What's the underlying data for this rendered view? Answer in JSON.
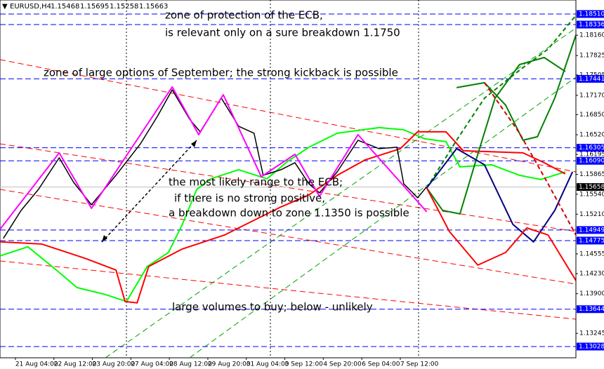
{
  "chart_data": {
    "type": "line",
    "header": {
      "symbol": "EURUSD,H4",
      "ohlc": [
        1.15468,
        1.15695,
        1.15258,
        1.15663
      ]
    },
    "xlim": [
      -3.2,
      116.5
    ],
    "xticks": [
      {
        "value": 0,
        "label": "21 Aug 04:00"
      },
      {
        "value": 8,
        "label": "22 Aug 12:00"
      },
      {
        "value": 16,
        "label": "23 Aug 20:00"
      },
      {
        "value": 24,
        "label": "27 Aug 04:00"
      },
      {
        "value": 32,
        "label": "28 Aug 12:00"
      },
      {
        "value": 40,
        "label": "29 Aug 20:00"
      },
      {
        "value": 48,
        "label": "31 Aug 04:00"
      },
      {
        "value": 56,
        "label": "3 Sep 12:00"
      },
      {
        "value": 64,
        "label": "4 Sep 20:00"
      },
      {
        "value": 72,
        "label": "6 Sep 04:00"
      },
      {
        "value": 80,
        "label": "7 Sep 12:00"
      }
    ],
    "ylim": [
      1.12843,
      1.18741
    ],
    "yticks": [
      {
        "value": 1.1816,
        "label": "1.18160"
      },
      {
        "value": 1.17825,
        "label": "1.17825"
      },
      {
        "value": 1.17505,
        "label": "1.17505"
      },
      {
        "value": 1.1717,
        "label": "1.17170"
      },
      {
        "value": 1.1685,
        "label": "1.16850"
      },
      {
        "value": 1.1652,
        "label": "1.16520"
      },
      {
        "value": 1.16195,
        "label": "1.16195"
      },
      {
        "value": 1.15865,
        "label": "1.15865"
      },
      {
        "value": 1.1554,
        "label": "1.15540"
      },
      {
        "value": 1.1521,
        "label": "1.15210"
      },
      {
        "value": 1.14555,
        "label": "1.14555"
      },
      {
        "value": 1.1423,
        "label": "1.14230"
      },
      {
        "value": 1.139,
        "label": "1.13900"
      },
      {
        "value": 1.13245,
        "label": "1.13245"
      }
    ],
    "levels": [
      {
        "value": 1.1851,
        "label": "1.18510"
      },
      {
        "value": 1.18336,
        "label": "1.18336"
      },
      {
        "value": 1.17441,
        "label": "1.17441"
      },
      {
        "value": 1.16305,
        "label": "1.16305"
      },
      {
        "value": 1.1609,
        "label": "1.16090"
      },
      {
        "value": 1.14949,
        "label": "1.14949"
      },
      {
        "value": 1.14775,
        "label": "1.14775"
      },
      {
        "value": 1.13644,
        "label": "1.13644"
      },
      {
        "value": 1.13028,
        "label": "1.13028"
      }
    ],
    "level_color": "#0000ff",
    "current_price": {
      "value": 1.15658,
      "label": "1.15658"
    },
    "series": [
      {
        "color": "#00ff00",
        "width": 2,
        "dash": false,
        "x": [
          -3.2,
          2.6,
          8.5,
          12.8,
          18.7,
          23.1,
          27.4,
          31.8,
          34.7,
          37.7,
          40.6,
          46.4,
          52.3,
          56.6,
          61.0,
          66.9,
          75.6,
          80.7,
          85.1,
          89.5,
          92.4,
          99.0,
          104.8,
          109.2,
          114.3
        ],
        "values": [
          1.14522,
          1.14672,
          1.1429,
          1.14001,
          1.13886,
          1.1377,
          1.14348,
          1.14579,
          1.15042,
          1.1562,
          1.15793,
          1.15943,
          1.15793,
          1.16082,
          1.16313,
          1.16545,
          1.16637,
          1.16602,
          1.16452,
          1.16406,
          1.1599,
          1.16024,
          1.15851,
          1.15782,
          1.15909
        ]
      },
      {
        "color": "#ff0000",
        "width": 2,
        "dash": false,
        "x": [
          -3.2,
          5.5,
          14.3,
          20.9,
          22.8,
          25.3,
          27.7,
          34.7,
          43.5,
          50.8,
          55.2,
          61.0,
          66.9,
          72.7,
          80.0,
          83.6,
          89.5,
          93.1,
          105.5,
          109.9,
          114.3
        ],
        "values": [
          1.14753,
          1.14718,
          1.14487,
          1.1429,
          1.1377,
          1.13747,
          1.14348,
          1.14637,
          1.14868,
          1.15157,
          1.15331,
          1.15527,
          1.15851,
          1.16105,
          1.1629,
          1.16568,
          1.16568,
          1.16256,
          1.16221,
          1.16059,
          1.15874
        ]
      },
      {
        "color": "#000000",
        "width": 1.5,
        "dash": false,
        "x": [
          -2.5,
          1.2,
          4.8,
          9.1,
          12.1,
          15.8,
          20.9,
          26.0,
          29.6,
          32.6,
          36.2,
          38.4,
          42.8,
          46.4,
          49.6,
          51.5,
          55.2,
          58.1,
          61.0,
          63.2,
          66.9,
          71.2,
          75.6,
          79.3,
          80.7,
          83.6,
          85.5
        ],
        "values": [
          1.14811,
          1.15273,
          1.1562,
          1.1614,
          1.15735,
          1.15365,
          1.15851,
          1.16371,
          1.16834,
          1.17261,
          1.16776,
          1.16568,
          1.17123,
          1.1666,
          1.16545,
          1.15851,
          1.15943,
          1.16059,
          1.15712,
          1.15562,
          1.15909,
          1.16429,
          1.1629,
          1.16313,
          1.15712,
          1.15481,
          1.15663
        ]
      },
      {
        "color": "#ff00ff",
        "width": 2,
        "dash": false,
        "x": [
          -3.2,
          9.1,
          15.8,
          32.6,
          38.1,
          43.2,
          51.1,
          58.1,
          63.2,
          71.2,
          85.5
        ],
        "values": [
          1.14961,
          1.16221,
          1.15308,
          1.17308,
          1.16521,
          1.1718,
          1.15828,
          1.16198,
          1.15504,
          1.16521,
          1.1525
        ]
      },
      {
        "color": "#008000",
        "width": 2,
        "dash": true,
        "x": [
          85.5,
          91.7,
          97.5,
          104.8,
          110.7,
          116.5
        ],
        "values": [
          1.15643,
          1.16429,
          1.17123,
          1.17585,
          1.17932,
          1.18487
        ]
      },
      {
        "color": "#008000",
        "width": 2,
        "dash": false,
        "x": [
          85.5,
          88.8,
          92.4,
          96.1,
          99.7,
          104.8,
          109.9,
          114.3
        ],
        "values": [
          1.15643,
          1.15273,
          1.15215,
          1.16198,
          1.17123,
          1.17677,
          1.17793,
          1.17562
        ]
      },
      {
        "color": "#008000",
        "width": 2,
        "dash": false,
        "x": [
          91.7,
          97.5,
          101.9,
          105.5,
          108.5,
          112.1,
          116.5
        ],
        "values": [
          1.17296,
          1.17377,
          1.17007,
          1.16429,
          1.16487,
          1.17123,
          1.18163
        ]
      },
      {
        "color": "#000080",
        "width": 2,
        "dash": false,
        "x": [
          85.5,
          91.7,
          97.5,
          103.4,
          107.7,
          112.1,
          115.8
        ],
        "values": [
          1.15643,
          1.1629,
          1.16024,
          1.15042,
          1.14753,
          1.15273,
          1.15909
        ]
      },
      {
        "color": "#ff0000",
        "width": 2,
        "dash": false,
        "x": [
          85.5,
          90.2,
          96.1,
          101.9,
          106.3,
          110.7,
          116.5
        ],
        "values": [
          1.15643,
          1.14926,
          1.14371,
          1.14579,
          1.14984,
          1.14868,
          1.14117
        ]
      },
      {
        "color": "#cc0000",
        "width": 2,
        "dash": true,
        "x": [
          97.5,
          104.8,
          110.7,
          116.5
        ],
        "values": [
          1.17377,
          1.16545,
          1.15712,
          1.14868
        ]
      }
    ],
    "annotations": [
      "zone of protection of the ECB,",
      "is relevant only on a sure breakdown 1.1750",
      "zone of large options of September; the strong kickback is possible",
      "the most likely range to the ECB;",
      "if there is no strong positive,",
      "a breakdown down to zone 1.1350 is possible",
      "large volumes to buy;  below - unlikely"
    ]
  }
}
